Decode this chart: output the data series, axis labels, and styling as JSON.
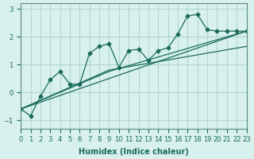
{
  "xlabel": "Humidex (Indice chaleur)",
  "ylabel": "",
  "bg_color": "#d8f0ee",
  "line_color": "#1a6b5a",
  "grid_color": "#b0d8d0",
  "xlim": [
    0,
    23
  ],
  "ylim": [
    -1.3,
    3.2
  ],
  "xticks": [
    0,
    1,
    2,
    3,
    4,
    5,
    6,
    7,
    8,
    9,
    10,
    11,
    12,
    13,
    14,
    15,
    16,
    17,
    18,
    19,
    20,
    21,
    22,
    23
  ],
  "yticks": [
    -1,
    0,
    1,
    2,
    3
  ],
  "series": [
    {
      "x": [
        0,
        1,
        2,
        3,
        4,
        5,
        6,
        7,
        8,
        9,
        10,
        11,
        12,
        13,
        14,
        15,
        16,
        17,
        18,
        19,
        20,
        21,
        22,
        23
      ],
      "y": [
        -0.6,
        -0.85,
        -0.15,
        0.45,
        0.75,
        0.3,
        0.28,
        1.4,
        1.65,
        1.75,
        0.9,
        1.5,
        1.55,
        1.15,
        1.5,
        1.6,
        2.1,
        2.75,
        2.8,
        2.25,
        2.2,
        2.2,
        2.2,
        2.2
      ],
      "marker": "D",
      "markersize": 2.5
    },
    {
      "x": [
        0,
        9,
        23
      ],
      "y": [
        -0.6,
        0.8,
        1.65
      ],
      "marker": null,
      "markersize": 0
    },
    {
      "x": [
        0,
        9,
        23
      ],
      "y": [
        -0.6,
        0.75,
        2.2
      ],
      "marker": null,
      "markersize": 0
    },
    {
      "x": [
        0,
        23
      ],
      "y": [
        -0.6,
        2.2
      ],
      "marker": null,
      "markersize": 0
    }
  ]
}
